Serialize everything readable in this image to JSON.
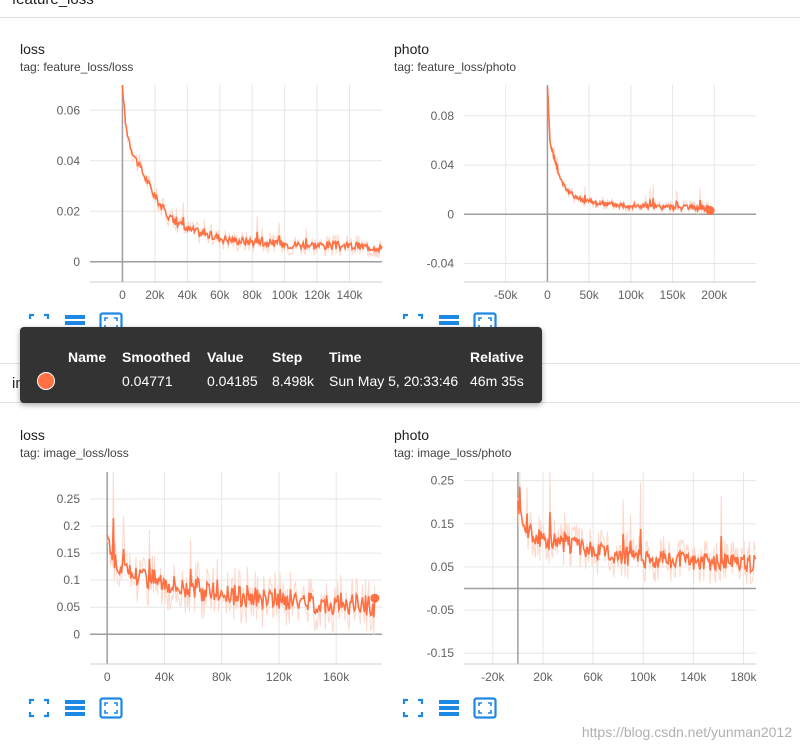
{
  "sections": [
    {
      "title": "feature_loss"
    },
    {
      "title": "image_loss"
    }
  ],
  "cards": [
    {
      "title": "loss",
      "tag": "tag: feature_loss/loss"
    },
    {
      "title": "photo",
      "tag": "tag: feature_loss/photo"
    },
    {
      "title": "loss",
      "tag": "tag: image_loss/loss"
    },
    {
      "title": "photo",
      "tag": "tag: image_loss/photo"
    }
  ],
  "toolbar_icons": [
    "fit-domain-icon",
    "data-table-icon",
    "expand-icon"
  ],
  "tooltip": {
    "headers": [
      "Name",
      "Smoothed",
      "Value",
      "Step",
      "Time",
      "Relative"
    ],
    "row": {
      "smoothed": "0.04771",
      "value": "0.04185",
      "step": "8.498k",
      "time": "Sun May 5, 20:33:46",
      "relative": "46m 35s"
    },
    "dot_color": "#ff7043"
  },
  "watermark": "https://blog.csdn.net/yunman2012",
  "colors": {
    "series": "#ff7043",
    "raw": "#fcd9cc",
    "grid": "#e6e6e6",
    "axis": "#9e9e9e"
  },
  "chart_data": [
    {
      "type": "line",
      "xlim": [
        -20000,
        160000
      ],
      "ylim": [
        -0.008,
        0.07
      ],
      "xticks": [
        0,
        20000,
        40000,
        60000,
        80000,
        100000,
        120000,
        140000
      ],
      "xtick_labels": [
        "0",
        "20k",
        "40k",
        "60k",
        "80k",
        "100k",
        "120k",
        "140k"
      ],
      "yticks": [
        0,
        0.02,
        0.04,
        0.06
      ],
      "ytick_labels": [
        "0",
        "0.02",
        "0.04",
        "0.06"
      ],
      "series": [
        {
          "x": [
            0,
            2000,
            5000,
            8000,
            12000,
            16000,
            20000,
            25000,
            30000,
            35000,
            40000,
            50000,
            60000,
            70000,
            80000,
            90000,
            100000,
            110000,
            120000,
            130000,
            140000,
            150000,
            160000
          ],
          "y": [
            0.07,
            0.054,
            0.046,
            0.041,
            0.036,
            0.031,
            0.026,
            0.021,
            0.017,
            0.015,
            0.013,
            0.011,
            0.0095,
            0.0085,
            0.008,
            0.0075,
            0.007,
            0.0068,
            0.0066,
            0.0064,
            0.0062,
            0.006,
            0.0058
          ],
          "noise": 0.0025
        }
      ]
    },
    {
      "type": "line",
      "xlim": [
        -100000,
        250000
      ],
      "ylim": [
        -0.055,
        0.105
      ],
      "xticks": [
        -50000,
        0,
        50000,
        100000,
        150000,
        200000
      ],
      "xtick_labels": [
        "-50k",
        "0",
        "50k",
        "100k",
        "150k",
        "200k"
      ],
      "yticks": [
        -0.04,
        0,
        0.04,
        0.08
      ],
      "ytick_labels": [
        "-0.04",
        "0",
        "0.04",
        "0.08"
      ],
      "series": [
        {
          "x": [
            0,
            3000,
            8000,
            15000,
            25000,
            40000,
            60000,
            80000,
            100000,
            130000,
            160000,
            195000
          ],
          "y": [
            0.105,
            0.06,
            0.045,
            0.03,
            0.018,
            0.012,
            0.009,
            0.008,
            0.007,
            0.006,
            0.0055,
            0.005
          ],
          "noise": 0.003
        }
      ],
      "endpoint": true
    },
    {
      "type": "line",
      "xlim": [
        -12000,
        192000
      ],
      "ylim": [
        -0.055,
        0.3
      ],
      "xticks": [
        0,
        40000,
        80000,
        120000,
        160000
      ],
      "xtick_labels": [
        "0",
        "40k",
        "80k",
        "120k",
        "160k"
      ],
      "yticks": [
        0,
        0.05,
        0.1,
        0.15,
        0.2,
        0.25
      ],
      "ytick_labels": [
        "0",
        "0.05",
        "0.1",
        "0.15",
        "0.2",
        "0.25"
      ],
      "series": [
        {
          "x": [
            0,
            4000,
            10000,
            20000,
            30000,
            40000,
            50000,
            60000,
            70000,
            80000,
            90000,
            100000,
            110000,
            120000,
            130000,
            140000,
            150000,
            160000,
            170000,
            180000,
            187000
          ],
          "y": [
            0.19,
            0.14,
            0.12,
            0.11,
            0.105,
            0.1,
            0.09,
            0.085,
            0.08,
            0.075,
            0.07,
            0.068,
            0.066,
            0.064,
            0.062,
            0.06,
            0.058,
            0.056,
            0.055,
            0.053,
            0.052
          ],
          "noise": 0.03
        }
      ],
      "endpoint": true
    },
    {
      "type": "line",
      "xlim": [
        -43000,
        190000
      ],
      "ylim": [
        -0.175,
        0.27
      ],
      "xticks": [
        -20000,
        20000,
        60000,
        100000,
        140000,
        180000
      ],
      "xtick_labels": [
        "-20k",
        "20k",
        "60k",
        "100k",
        "140k",
        "180k"
      ],
      "yticks": [
        -0.15,
        -0.05,
        0.05,
        0.15,
        0.25
      ],
      "ytick_labels": [
        "-0.15",
        "-0.05",
        "0.05",
        "0.15",
        "0.25"
      ],
      "series": [
        {
          "x": [
            0,
            5000,
            15000,
            25000,
            35000,
            45000,
            55000,
            65000,
            75000,
            85000,
            95000,
            110000,
            125000,
            140000,
            155000,
            170000,
            180000,
            190000
          ],
          "y": [
            0.2,
            0.14,
            0.12,
            0.11,
            0.105,
            0.1,
            0.09,
            0.085,
            0.08,
            0.075,
            0.07,
            0.068,
            0.066,
            0.064,
            0.062,
            0.06,
            0.058,
            0.056
          ],
          "noise": 0.03
        }
      ]
    }
  ]
}
